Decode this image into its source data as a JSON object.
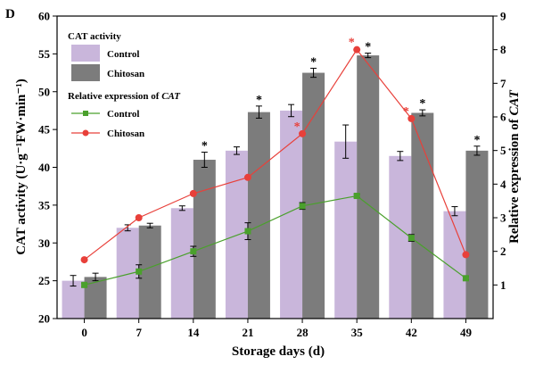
{
  "chart_data": {
    "type": "bar",
    "panel_label": "D",
    "categories": [
      "0",
      "7",
      "14",
      "21",
      "28",
      "35",
      "42",
      "49"
    ],
    "xlabel": "Storage days (d)",
    "ylabel": "CAT activity (U·g⁻¹FW·min⁻¹)",
    "y2label_prefix": "Relative expression of ",
    "y2label_italic": "CAT",
    "ylim": [
      20,
      60
    ],
    "yticks": [
      20,
      25,
      30,
      35,
      40,
      45,
      50,
      55,
      60
    ],
    "y2lim": [
      0,
      9
    ],
    "y2ticks": [
      1,
      2,
      3,
      4,
      5,
      6,
      7,
      8,
      9
    ],
    "bar_series": [
      {
        "name": "Control",
        "color": "#c9b6db",
        "values": [
          25.0,
          32.0,
          34.6,
          42.2,
          47.5,
          43.4,
          41.5,
          34.2
        ],
        "errors": [
          0.7,
          0.4,
          0.3,
          0.5,
          0.8,
          2.2,
          0.6,
          0.6
        ],
        "sig": [
          false,
          false,
          false,
          false,
          false,
          false,
          false,
          false
        ]
      },
      {
        "name": "Chitosan",
        "color": "#7c7c7c",
        "values": [
          25.5,
          32.3,
          41.0,
          47.3,
          52.5,
          54.8,
          47.2,
          42.2
        ],
        "errors": [
          0.5,
          0.3,
          1.0,
          0.8,
          0.6,
          0.3,
          0.4,
          0.6
        ],
        "sig": [
          false,
          false,
          true,
          true,
          true,
          true,
          true,
          true
        ]
      }
    ],
    "line_series": [
      {
        "name": "Control",
        "color": "#4aa02c",
        "marker": "square",
        "values": [
          1.0,
          1.4,
          2.0,
          2.6,
          3.35,
          3.65,
          2.4,
          1.2
        ],
        "errors": [
          0.05,
          0.2,
          0.15,
          0.25,
          0.1,
          0.05,
          0.1,
          0.05
        ],
        "sig": [
          false,
          false,
          false,
          false,
          false,
          false,
          false,
          false
        ]
      },
      {
        "name": "Chitosan",
        "color": "#e8403a",
        "marker": "circle",
        "values": [
          1.75,
          3.0,
          3.72,
          4.2,
          5.5,
          8.0,
          5.95,
          1.9
        ],
        "errors": [
          0,
          0,
          0,
          0,
          0,
          0,
          0,
          0
        ],
        "sig": [
          false,
          false,
          false,
          false,
          true,
          true,
          true,
          false
        ]
      }
    ],
    "legend": {
      "bars_title": "CAT activity",
      "lines_title_prefix": "Relative expression of ",
      "lines_title_italic": "CAT",
      "bar_items": [
        "Control",
        "Chitosan"
      ],
      "line_items": [
        "Control",
        "Chitosan"
      ]
    },
    "significance_mark": "*"
  }
}
